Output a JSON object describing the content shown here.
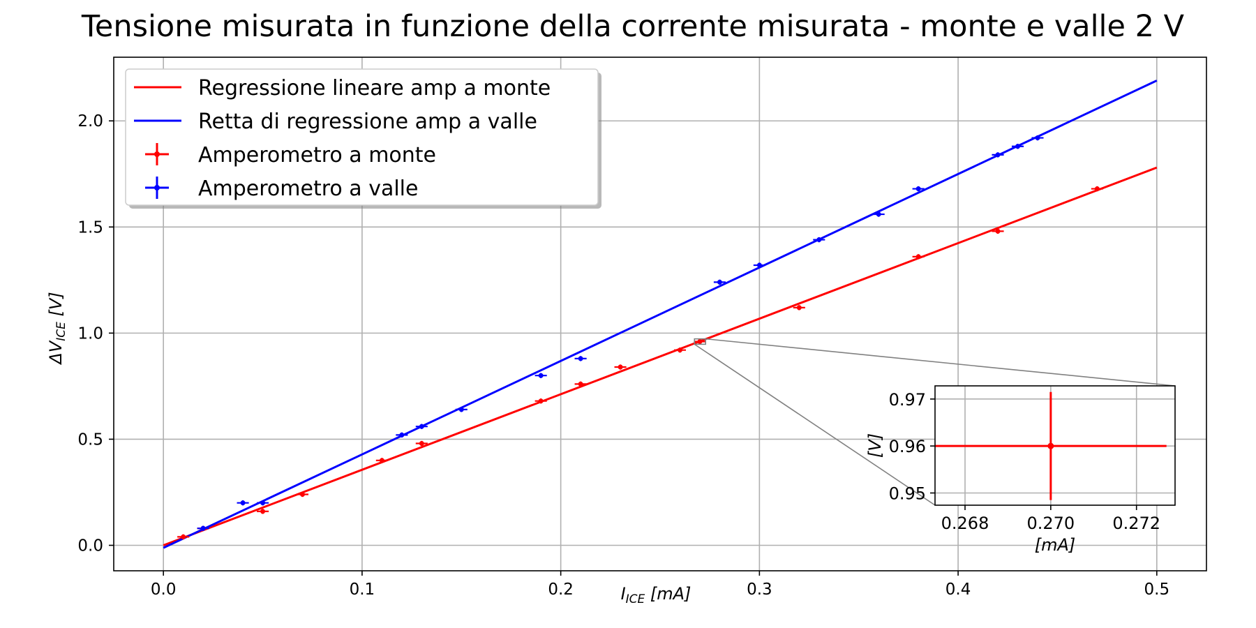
{
  "chart_data": {
    "type": "scatter",
    "title": "Tensione misurata in funzione della corrente misurata - monte e valle 2 V",
    "xlabel": {
      "base": "I",
      "sub": "ICE",
      "unit": " [mA]"
    },
    "ylabel": {
      "base": "ΔV",
      "sub": "ICE",
      "unit": " [V]"
    },
    "xlim": [
      -0.025,
      0.525
    ],
    "ylim": [
      -0.12,
      2.3
    ],
    "xticks": [
      "0.0",
      "0.1",
      "0.2",
      "0.3",
      "0.4",
      "0.5"
    ],
    "yticks": [
      "0.0",
      "0.5",
      "1.0",
      "1.5",
      "2.0"
    ],
    "grid": true,
    "legend": {
      "position": "upper-left",
      "entries": [
        {
          "label": "Regressione lineare amp a monte",
          "kind": "line",
          "color": "#ff0000"
        },
        {
          "label": "Retta di regressione amp a valle",
          "kind": "line",
          "color": "#0000ff"
        },
        {
          "label": "Amperometro a monte",
          "kind": "errorbar",
          "color": "#ff0000"
        },
        {
          "label": "Amperometro a valle",
          "kind": "errorbar",
          "color": "#0000ff"
        }
      ]
    },
    "series": [
      {
        "name": "Amperometro a monte",
        "color": "#ff0000",
        "x": [
          0.01,
          0.02,
          0.05,
          0.07,
          0.11,
          0.13,
          0.19,
          0.21,
          0.23,
          0.26,
          0.27,
          0.32,
          0.38,
          0.42,
          0.47
        ],
        "y": [
          0.04,
          0.08,
          0.16,
          0.24,
          0.4,
          0.48,
          0.68,
          0.76,
          0.84,
          0.92,
          0.96,
          1.12,
          1.36,
          1.48,
          1.68
        ],
        "xerr": 0.003,
        "yerr": 0.012
      },
      {
        "name": "Amperometro a valle",
        "color": "#0000ff",
        "x": [
          0.02,
          0.04,
          0.05,
          0.12,
          0.13,
          0.15,
          0.19,
          0.21,
          0.28,
          0.3,
          0.33,
          0.36,
          0.38,
          0.42,
          0.43,
          0.44
        ],
        "y": [
          0.08,
          0.2,
          0.2,
          0.52,
          0.56,
          0.64,
          0.8,
          0.88,
          1.24,
          1.32,
          1.44,
          1.56,
          1.68,
          1.84,
          1.88,
          1.92
        ],
        "xerr": 0.003,
        "yerr": 0.012
      },
      {
        "name": "Regressione lineare amp a monte",
        "type": "line",
        "color": "#ff0000",
        "x": [
          0.0,
          0.5
        ],
        "y": [
          0.0,
          1.78
        ]
      },
      {
        "name": "Retta di regressione amp a valle",
        "type": "line",
        "color": "#0000ff",
        "x": [
          0.0,
          0.5
        ],
        "y": [
          -0.012,
          2.19
        ]
      }
    ],
    "inset": {
      "xlim": [
        0.2673,
        0.2729
      ],
      "ylim": [
        0.9474,
        0.9728
      ],
      "xticks": [
        "0.268",
        "0.270",
        "0.272"
      ],
      "yticks": [
        "0.95",
        "0.96",
        "0.97"
      ],
      "xlabel": "[mA]",
      "ylabel": "[V]",
      "point": {
        "x": 0.27,
        "y": 0.96,
        "xerr": 0.0027,
        "yerr": 0.0115,
        "color": "#ff0000"
      },
      "zoom_region": {
        "x": [
          0.2673,
          0.2729
        ],
        "y": [
          0.9474,
          0.9728
        ]
      }
    }
  }
}
